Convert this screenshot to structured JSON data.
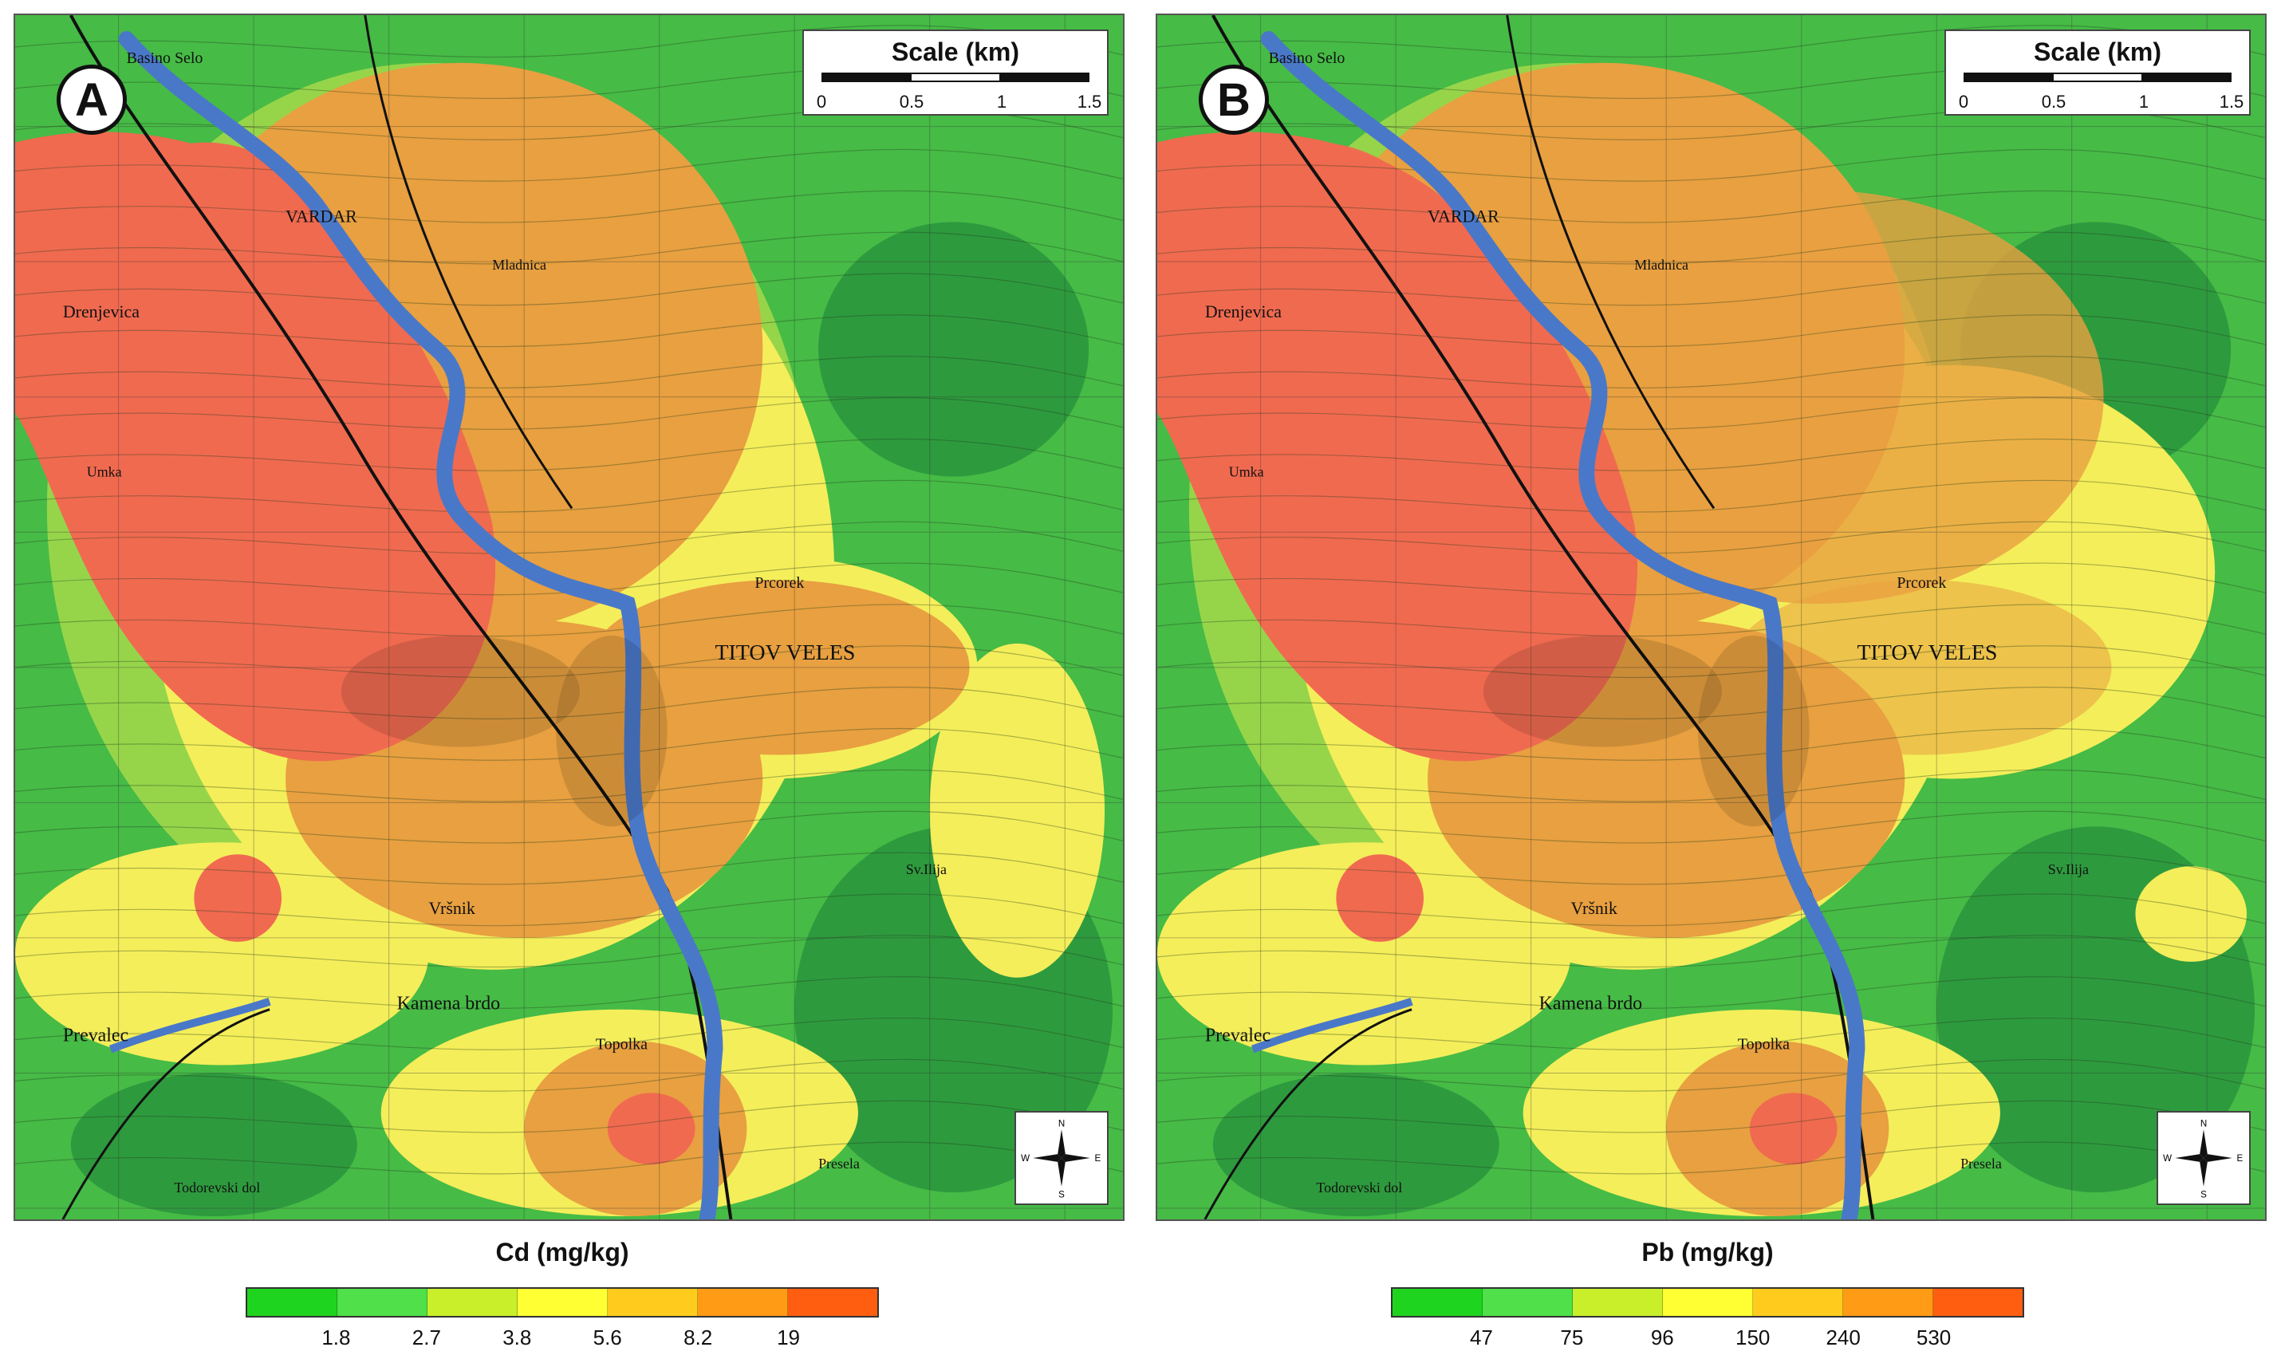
{
  "panels": [
    {
      "id": "A",
      "label": "A",
      "scale": {
        "title": "Scale (km)",
        "ticks": [
          "0",
          "0.5",
          "1",
          "1.5"
        ]
      },
      "compass": {
        "n": "N",
        "s": "S",
        "e": "E",
        "w": "W"
      },
      "legend": {
        "title": "Cd (mg/kg)",
        "breaks": [
          "1.8",
          "2.7",
          "3.8",
          "5.6",
          "8.2",
          "19"
        ],
        "colors": [
          "#1fd41f",
          "#4fe04a",
          "#c8ef2a",
          "#ffff33",
          "#ffcc1e",
          "#ff9b14",
          "#ff5e10"
        ]
      }
    },
    {
      "id": "B",
      "label": "B",
      "scale": {
        "title": "Scale (km)",
        "ticks": [
          "0",
          "0.5",
          "1",
          "1.5"
        ]
      },
      "compass": {
        "n": "N",
        "s": "S",
        "e": "E",
        "w": "W"
      },
      "legend": {
        "title": "Pb (mg/kg)",
        "breaks": [
          "47",
          "75",
          "96",
          "150",
          "240",
          "530"
        ],
        "colors": [
          "#1fd41f",
          "#4fe04a",
          "#c8ef2a",
          "#ffff33",
          "#ffcc1e",
          "#ff9b14",
          "#ff5e10"
        ]
      }
    }
  ],
  "places": {
    "basino_selo": "Basino Selo",
    "vardar": "VARDAR",
    "drenjevica": "Drenjevica",
    "titov_veles": "TITOV VELES",
    "prevalec": "Prevalec",
    "kamena_brdo": "Kamena brdo",
    "vrsnik": "Vršnik",
    "prcorek": "Prcorek",
    "umka": "Umka",
    "mladnica": "Mladnica",
    "sv_ilija": "Sv.Ilija",
    "topolka": "Topolka",
    "presela": "Presela",
    "todorevski": "Todorevski dol"
  },
  "colors": {
    "water": "#4a78c8",
    "zone_red": "#f06a50",
    "zone_orange": "#e8a040",
    "zone_yellow": "#f4ee5a",
    "zone_lightgreen": "#9fd84a",
    "zone_green": "#46bb46",
    "zone_darkgreen": "#2e9a3e"
  }
}
